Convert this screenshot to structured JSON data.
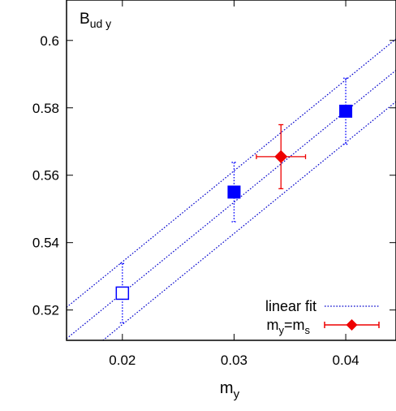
{
  "chart_data": {
    "type": "scatter",
    "title": "",
    "panel_label": {
      "main": "B",
      "sub": "ud y"
    },
    "xlabel": {
      "main": "m",
      "sub": "y"
    },
    "ylabel": "",
    "xlim": [
      0.015,
      0.0445
    ],
    "ylim": [
      0.511,
      0.612
    ],
    "x_ticks": [
      0.02,
      0.03,
      0.04
    ],
    "x_tick_labels": [
      "0.02",
      "0.03",
      "0.04"
    ],
    "y_ticks": [
      0.52,
      0.54,
      0.56,
      0.58,
      0.6
    ],
    "y_tick_labels": [
      "0.52",
      "0.54",
      "0.56",
      "0.58",
      "0.6"
    ],
    "grid": false,
    "legend_position": "bottom-right",
    "colors": {
      "blue": "#0000ff",
      "red": "#ee0000",
      "fit": "#0000cc"
    },
    "series": [
      {
        "name": "",
        "marker": "open-square",
        "color": "#0000ff",
        "points": [
          {
            "x": 0.02,
            "y": 0.525,
            "yerr": 0.0088
          }
        ]
      },
      {
        "name": "",
        "marker": "filled-square",
        "color": "#0000ff",
        "points": [
          {
            "x": 0.03,
            "y": 0.555,
            "yerr": 0.0088
          },
          {
            "x": 0.04,
            "y": 0.579,
            "yerr": 0.0098
          }
        ]
      },
      {
        "name": {
          "main": "m",
          "sub": "y",
          "rest": "=m",
          "sub2": "s"
        },
        "marker": "filled-diamond",
        "color": "#ee0000",
        "points": [
          {
            "x": 0.0342,
            "y": 0.5655,
            "yerr": 0.0095,
            "xerr": 0.0022
          }
        ]
      }
    ],
    "fit": {
      "name": "linear fit",
      "color": "#0000cc",
      "slope": 2.7,
      "intercept": 0.471,
      "band_offset": 0.0093
    }
  }
}
